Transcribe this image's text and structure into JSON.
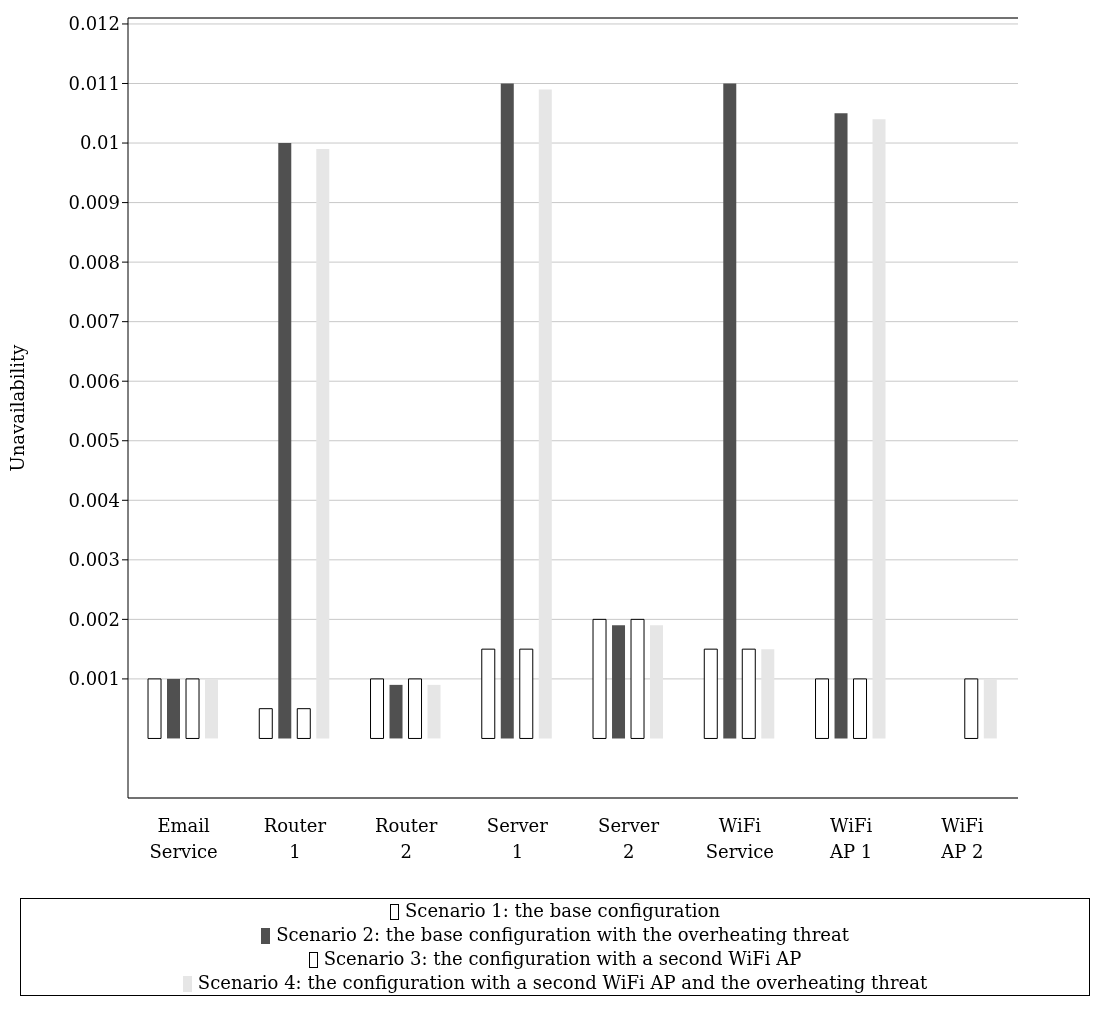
{
  "chart_data": {
    "type": "bar",
    "ylabel": "Unavailability",
    "categories": [
      "Email Service",
      "Router 1",
      "Router 2",
      "Server 1",
      "Server 2",
      "WiFi Service",
      "WiFi AP 1",
      "WiFi AP 2"
    ],
    "series": [
      {
        "name": "Scenario 1: the base configuration",
        "color": "#ffffff",
        "values": [
          0.001,
          0.0005,
          0.001,
          0.0015,
          0.002,
          0.0015,
          0.001,
          0
        ]
      },
      {
        "name": "Scenario 2: the base configuration with the overheating threat",
        "color": "#505050",
        "values": [
          0.001,
          0.01,
          0.0009,
          0.011,
          0.0019,
          0.011,
          0.0105,
          0
        ]
      },
      {
        "name": "Scenario 3: the configuration with a second WiFi AP",
        "color": "#ffffff",
        "values": [
          0.001,
          0.0005,
          0.001,
          0.0015,
          0.002,
          0.0015,
          0.001,
          0.001
        ]
      },
      {
        "name": "Scenario 4: the configuration with a second WiFi AP and the overheating threat",
        "color": "#e6e6e6",
        "values": [
          0.001,
          0.0099,
          0.0009,
          0.0109,
          0.0019,
          0.0015,
          0.0104,
          0.001
        ]
      }
    ],
    "ylim": [
      -0.001,
      0.0121
    ],
    "yticks": [
      0.001,
      0.002,
      0.003,
      0.004,
      0.005,
      0.006,
      0.007,
      0.008,
      0.009,
      0.01,
      0.011,
      0.012
    ],
    "grid": "y",
    "legend": "bottom"
  }
}
